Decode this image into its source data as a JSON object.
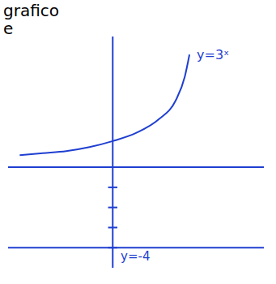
{
  "chart_data": {
    "type": "line",
    "title": "grafico",
    "subtitle": "e",
    "xlim": [
      -4.5,
      6.5
    ],
    "ylim": [
      -5,
      6.5
    ],
    "yticks": [
      -4,
      -3,
      -2,
      -1
    ],
    "tick_labels": false,
    "grid": false,
    "series": [
      {
        "name": "y=3ˣ",
        "color": "#1f3fd1",
        "x": [
          -4,
          -3,
          -2,
          -1,
          0,
          1,
          2,
          2.7,
          3.1,
          3.3
        ],
        "values": [
          0.6,
          0.7,
          0.8,
          1.0,
          1.3,
          1.7,
          2.4,
          3.3,
          4.5,
          5.6
        ]
      },
      {
        "name": "y=-4",
        "color": "#1f3fd1",
        "x": [
          -4.5,
          6.5
        ],
        "values": [
          -4,
          -4
        ]
      }
    ]
  }
}
